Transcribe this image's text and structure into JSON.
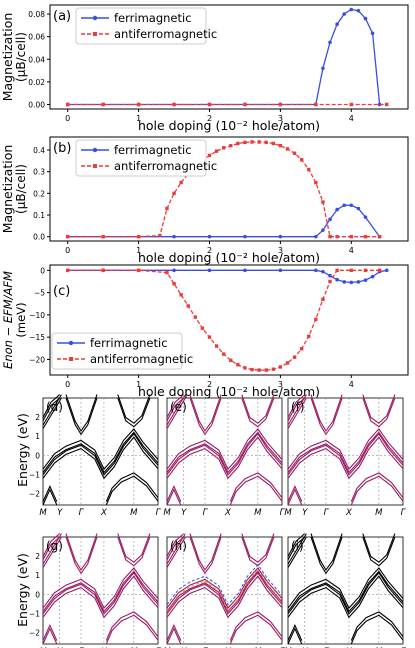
{
  "colors": {
    "fm": "#3a4fe0",
    "afm": "#ec3b3b",
    "purple": "#9b1b63",
    "black": "#000000",
    "orange": "#f28e2b"
  },
  "chart_data": [
    {
      "id": "a",
      "type": "line",
      "panel_label": "(a)",
      "ylabel_line1": "Magnetization",
      "ylabel_line2": "(μB/cell)",
      "xlabel": "hole doping (10⁻² hole/atom)",
      "xlim": [
        -0.25,
        4.8
      ],
      "ylim": [
        -0.004,
        0.088
      ],
      "xticks": [
        0,
        1,
        2,
        3,
        4
      ],
      "yticks": [
        0,
        0.02,
        0.04,
        0.06,
        0.08
      ],
      "ytick_labels": [
        "0.00",
        "0.02",
        "0.04",
        "0.06",
        "0.08"
      ],
      "legend": [
        "ferrimagnetic",
        "antiferromagnetic"
      ],
      "series": [
        {
          "name": "ferrimagnetic",
          "style": "fm",
          "x": [
            0,
            0.5,
            1.0,
            1.5,
            2.0,
            2.5,
            3.0,
            3.5,
            3.6,
            3.7,
            3.8,
            3.9,
            4.0,
            4.1,
            4.2,
            4.3,
            4.4
          ],
          "y": [
            0,
            0,
            0,
            0,
            0,
            0,
            0,
            0,
            0.032,
            0.055,
            0.071,
            0.08,
            0.084,
            0.083,
            0.076,
            0.063,
            0
          ]
        },
        {
          "name": "antiferromagnetic",
          "style": "afm",
          "x": [
            0,
            0.5,
            1.0,
            1.5,
            2.0,
            2.5,
            3.0,
            3.5,
            4.0,
            4.5
          ],
          "y": [
            0,
            0,
            0,
            0,
            0,
            0,
            0,
            0,
            0,
            0
          ]
        }
      ]
    },
    {
      "id": "b",
      "type": "line",
      "panel_label": "(b)",
      "ylabel_line1": "Magnetization",
      "ylabel_line2": "(μB/cell)",
      "xlabel": "hole doping (10⁻² hole/atom)",
      "xlim": [
        -0.25,
        4.8
      ],
      "ylim": [
        -0.02,
        0.46
      ],
      "xticks": [
        0,
        1,
        2,
        3,
        4
      ],
      "yticks": [
        0,
        0.1,
        0.2,
        0.3,
        0.4
      ],
      "ytick_labels": [
        "0.0",
        "0.1",
        "0.2",
        "0.3",
        "0.4"
      ],
      "legend": [
        "ferrimagnetic",
        "antiferromagnetic"
      ],
      "series": [
        {
          "name": "ferrimagnetic",
          "style": "fm",
          "x": [
            0,
            0.5,
            1.0,
            1.5,
            2.0,
            2.5,
            3.0,
            3.5,
            3.6,
            3.7,
            3.8,
            3.9,
            4.0,
            4.1,
            4.2,
            4.4
          ],
          "y": [
            0,
            0,
            0,
            0,
            0,
            0,
            0,
            0,
            0.03,
            0.08,
            0.125,
            0.145,
            0.145,
            0.13,
            0.09,
            0
          ]
        },
        {
          "name": "antiferromagnetic",
          "style": "afm",
          "x": [
            0,
            0.5,
            1.0,
            1.3,
            1.4,
            1.5,
            1.6,
            1.7,
            1.8,
            1.9,
            2.0,
            2.1,
            2.2,
            2.3,
            2.4,
            2.5,
            2.6,
            2.7,
            2.8,
            2.9,
            3.0,
            3.1,
            3.2,
            3.3,
            3.4,
            3.5,
            3.6,
            3.7,
            3.8,
            4.0,
            4.2,
            4.4
          ],
          "y": [
            0,
            0,
            0,
            0.005,
            0.13,
            0.2,
            0.25,
            0.29,
            0.32,
            0.35,
            0.375,
            0.395,
            0.41,
            0.42,
            0.43,
            0.435,
            0.437,
            0.437,
            0.435,
            0.43,
            0.42,
            0.405,
            0.385,
            0.355,
            0.31,
            0.25,
            0.16,
            0,
            0,
            0,
            0,
            0
          ]
        }
      ]
    },
    {
      "id": "c",
      "type": "line",
      "panel_label": "(c)",
      "ylabel_line1": "Enon − EFM/AFM",
      "ylabel_line2": "(meV)",
      "xlabel": "hole doping (10⁻² hole/atom)",
      "xlim": [
        -0.25,
        4.8
      ],
      "ylim": [
        -23.5,
        1.2
      ],
      "xticks": [
        0,
        1,
        2,
        3,
        4
      ],
      "yticks": [
        0,
        -5,
        -10,
        -15,
        -20
      ],
      "ytick_labels": [
        "0",
        "−5",
        "−10",
        "−15",
        "−20"
      ],
      "legend": [
        "ferrimagnetic",
        "antiferromagnetic"
      ],
      "series": [
        {
          "name": "ferrimagnetic",
          "style": "fm",
          "x": [
            0,
            0.5,
            1.0,
            1.5,
            2.0,
            2.5,
            3.0,
            3.5,
            3.6,
            3.7,
            3.8,
            3.9,
            4.0,
            4.1,
            4.2,
            4.3,
            4.4,
            4.5
          ],
          "y": [
            0,
            0,
            0,
            0,
            0,
            0,
            0,
            0,
            -0.3,
            -1.2,
            -2.1,
            -2.6,
            -2.7,
            -2.6,
            -2.2,
            -1.4,
            -0.3,
            0
          ]
        },
        {
          "name": "antiferromagnetic",
          "style": "afm",
          "x": [
            0,
            0.5,
            1.0,
            1.4,
            1.5,
            1.6,
            1.7,
            1.8,
            1.9,
            2.0,
            2.1,
            2.2,
            2.3,
            2.4,
            2.5,
            2.6,
            2.7,
            2.8,
            2.9,
            3.0,
            3.1,
            3.2,
            3.3,
            3.4,
            3.5,
            3.6,
            3.7,
            3.8,
            4.0,
            4.2,
            4.4
          ],
          "y": [
            0,
            0,
            0,
            -0.5,
            -3,
            -5.5,
            -8,
            -10.5,
            -13,
            -15,
            -17,
            -18.8,
            -20.2,
            -21.2,
            -21.9,
            -22.3,
            -22.4,
            -22.4,
            -22.2,
            -21.7,
            -20.8,
            -19.5,
            -17.6,
            -14.8,
            -11,
            -6.5,
            -2.5,
            0,
            0,
            0,
            0
          ]
        }
      ]
    }
  ],
  "bands": {
    "panels": [
      {
        "label": "(d)",
        "color": "black"
      },
      {
        "label": "(e)",
        "color": "purple"
      },
      {
        "label": "(f)",
        "color": "purple"
      },
      {
        "label": "(g)",
        "color": "purple"
      },
      {
        "label": "(h)",
        "color": "purple"
      },
      {
        "label": "(i)",
        "color": "black"
      }
    ],
    "ylabel": "Energy (eV)",
    "kpoints": [
      "M",
      "Y",
      "Γ",
      "X",
      "M",
      "Γ"
    ],
    "yticks": [
      "2",
      "1",
      "0",
      "−1",
      "−2"
    ]
  }
}
